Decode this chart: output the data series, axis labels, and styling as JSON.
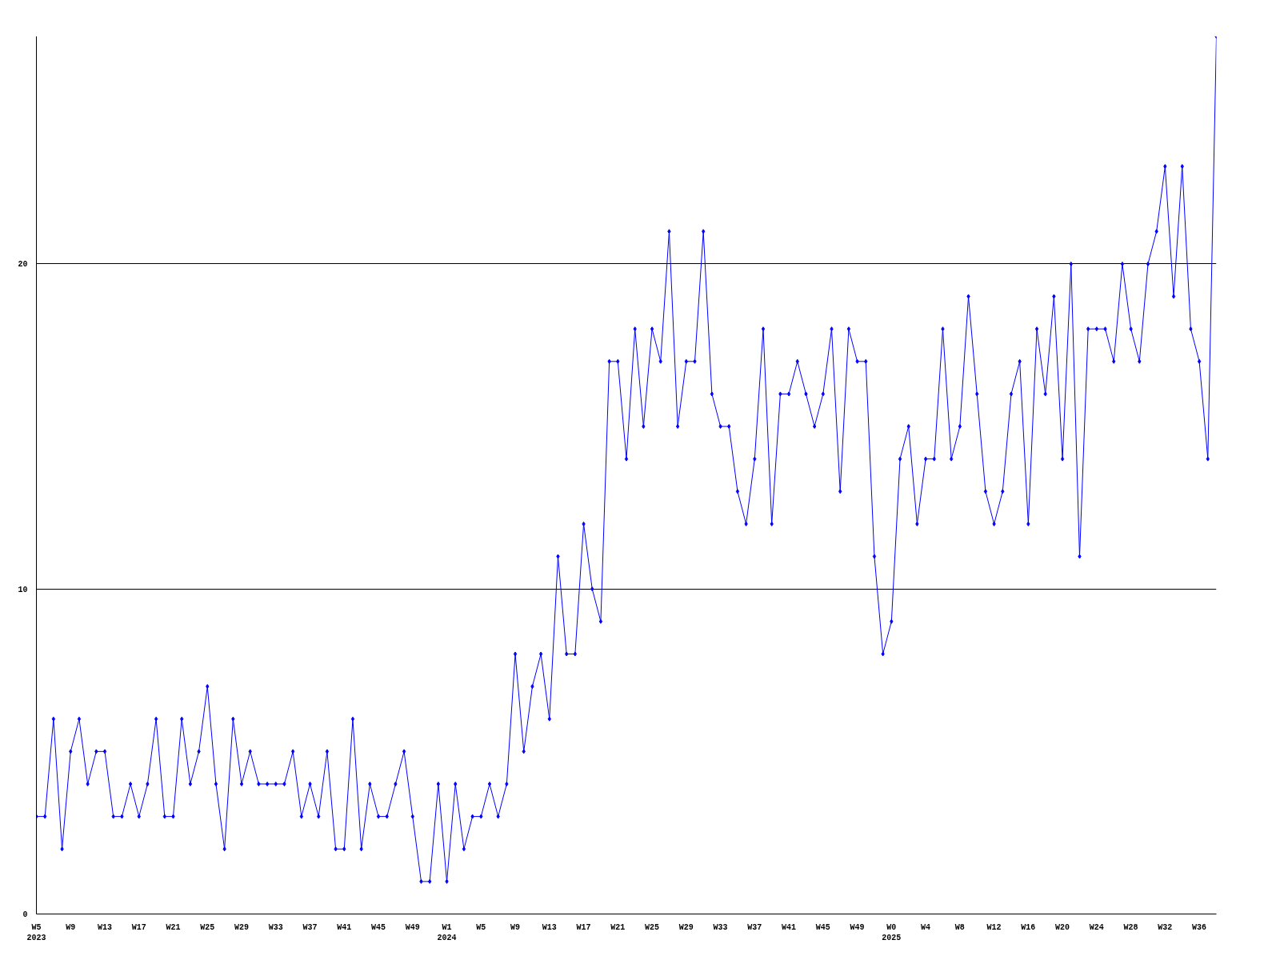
{
  "chart_data": {
    "type": "line",
    "categories": [
      "W5\n2023",
      null,
      null,
      null,
      "W9",
      null,
      null,
      null,
      "W13",
      null,
      null,
      null,
      "W17",
      null,
      null,
      null,
      "W21",
      null,
      null,
      null,
      "W25",
      null,
      null,
      null,
      "W29",
      null,
      null,
      null,
      "W33",
      null,
      null,
      null,
      "W37",
      null,
      null,
      null,
      "W41",
      null,
      null,
      null,
      "W45",
      null,
      null,
      null,
      "W49",
      null,
      null,
      null,
      "W1\n2024",
      null,
      null,
      null,
      "W5",
      null,
      null,
      null,
      "W9",
      null,
      null,
      null,
      "W13",
      null,
      null,
      null,
      "W17",
      null,
      null,
      null,
      "W21",
      null,
      null,
      null,
      "W25",
      null,
      null,
      null,
      "W29",
      null,
      null,
      null,
      "W33",
      null,
      null,
      null,
      "W37",
      null,
      null,
      null,
      "W41",
      null,
      null,
      null,
      "W45",
      null,
      null,
      null,
      "W49",
      null,
      null,
      null,
      "W0\n2025",
      null,
      null,
      null,
      "W4",
      null,
      null,
      null,
      "W8",
      null,
      null,
      null,
      "W12",
      null,
      null,
      null,
      "W16",
      null,
      null,
      null,
      "W20",
      null,
      null,
      null,
      "W24",
      null,
      null,
      null,
      "W28",
      null,
      null,
      null,
      "W32",
      null,
      null,
      null,
      "W36",
      null,
      null
    ],
    "series": [
      {
        "color": "#0000ff",
        "values": [
          3,
          3,
          6,
          2,
          5,
          6,
          4,
          5,
          5,
          3,
          3,
          4,
          3,
          4,
          6,
          3,
          3,
          6,
          4,
          5,
          7,
          4,
          2,
          6,
          4,
          5,
          4,
          4,
          4,
          4,
          5,
          3,
          4,
          3,
          5,
          2,
          2,
          6,
          2,
          4,
          3,
          3,
          4,
          5,
          3,
          1,
          1,
          4,
          1,
          4,
          2,
          3,
          3,
          4,
          3,
          4,
          8,
          5,
          7,
          8,
          6,
          11,
          8,
          8,
          12,
          10,
          9,
          17,
          17,
          14,
          18,
          15,
          18,
          17,
          21,
          15,
          17,
          17,
          21,
          16,
          15,
          15,
          13,
          12,
          14,
          18,
          12,
          16,
          16,
          17,
          16,
          15,
          16,
          18,
          13,
          18,
          17,
          17,
          11,
          8,
          9,
          14,
          15,
          12,
          14,
          14,
          18,
          14,
          15,
          19,
          16,
          13,
          12,
          13,
          16,
          17,
          12,
          18,
          16,
          19,
          14,
          20,
          11,
          18,
          18,
          18,
          17,
          20,
          18,
          17,
          20,
          21,
          23,
          19,
          23,
          18,
          17,
          14,
          27
        ]
      }
    ],
    "ylim": [
      0,
      27
    ],
    "yticks": [
      0,
      10,
      20
    ],
    "grid": "y",
    "marker": "diamond",
    "line_style": "solid"
  }
}
